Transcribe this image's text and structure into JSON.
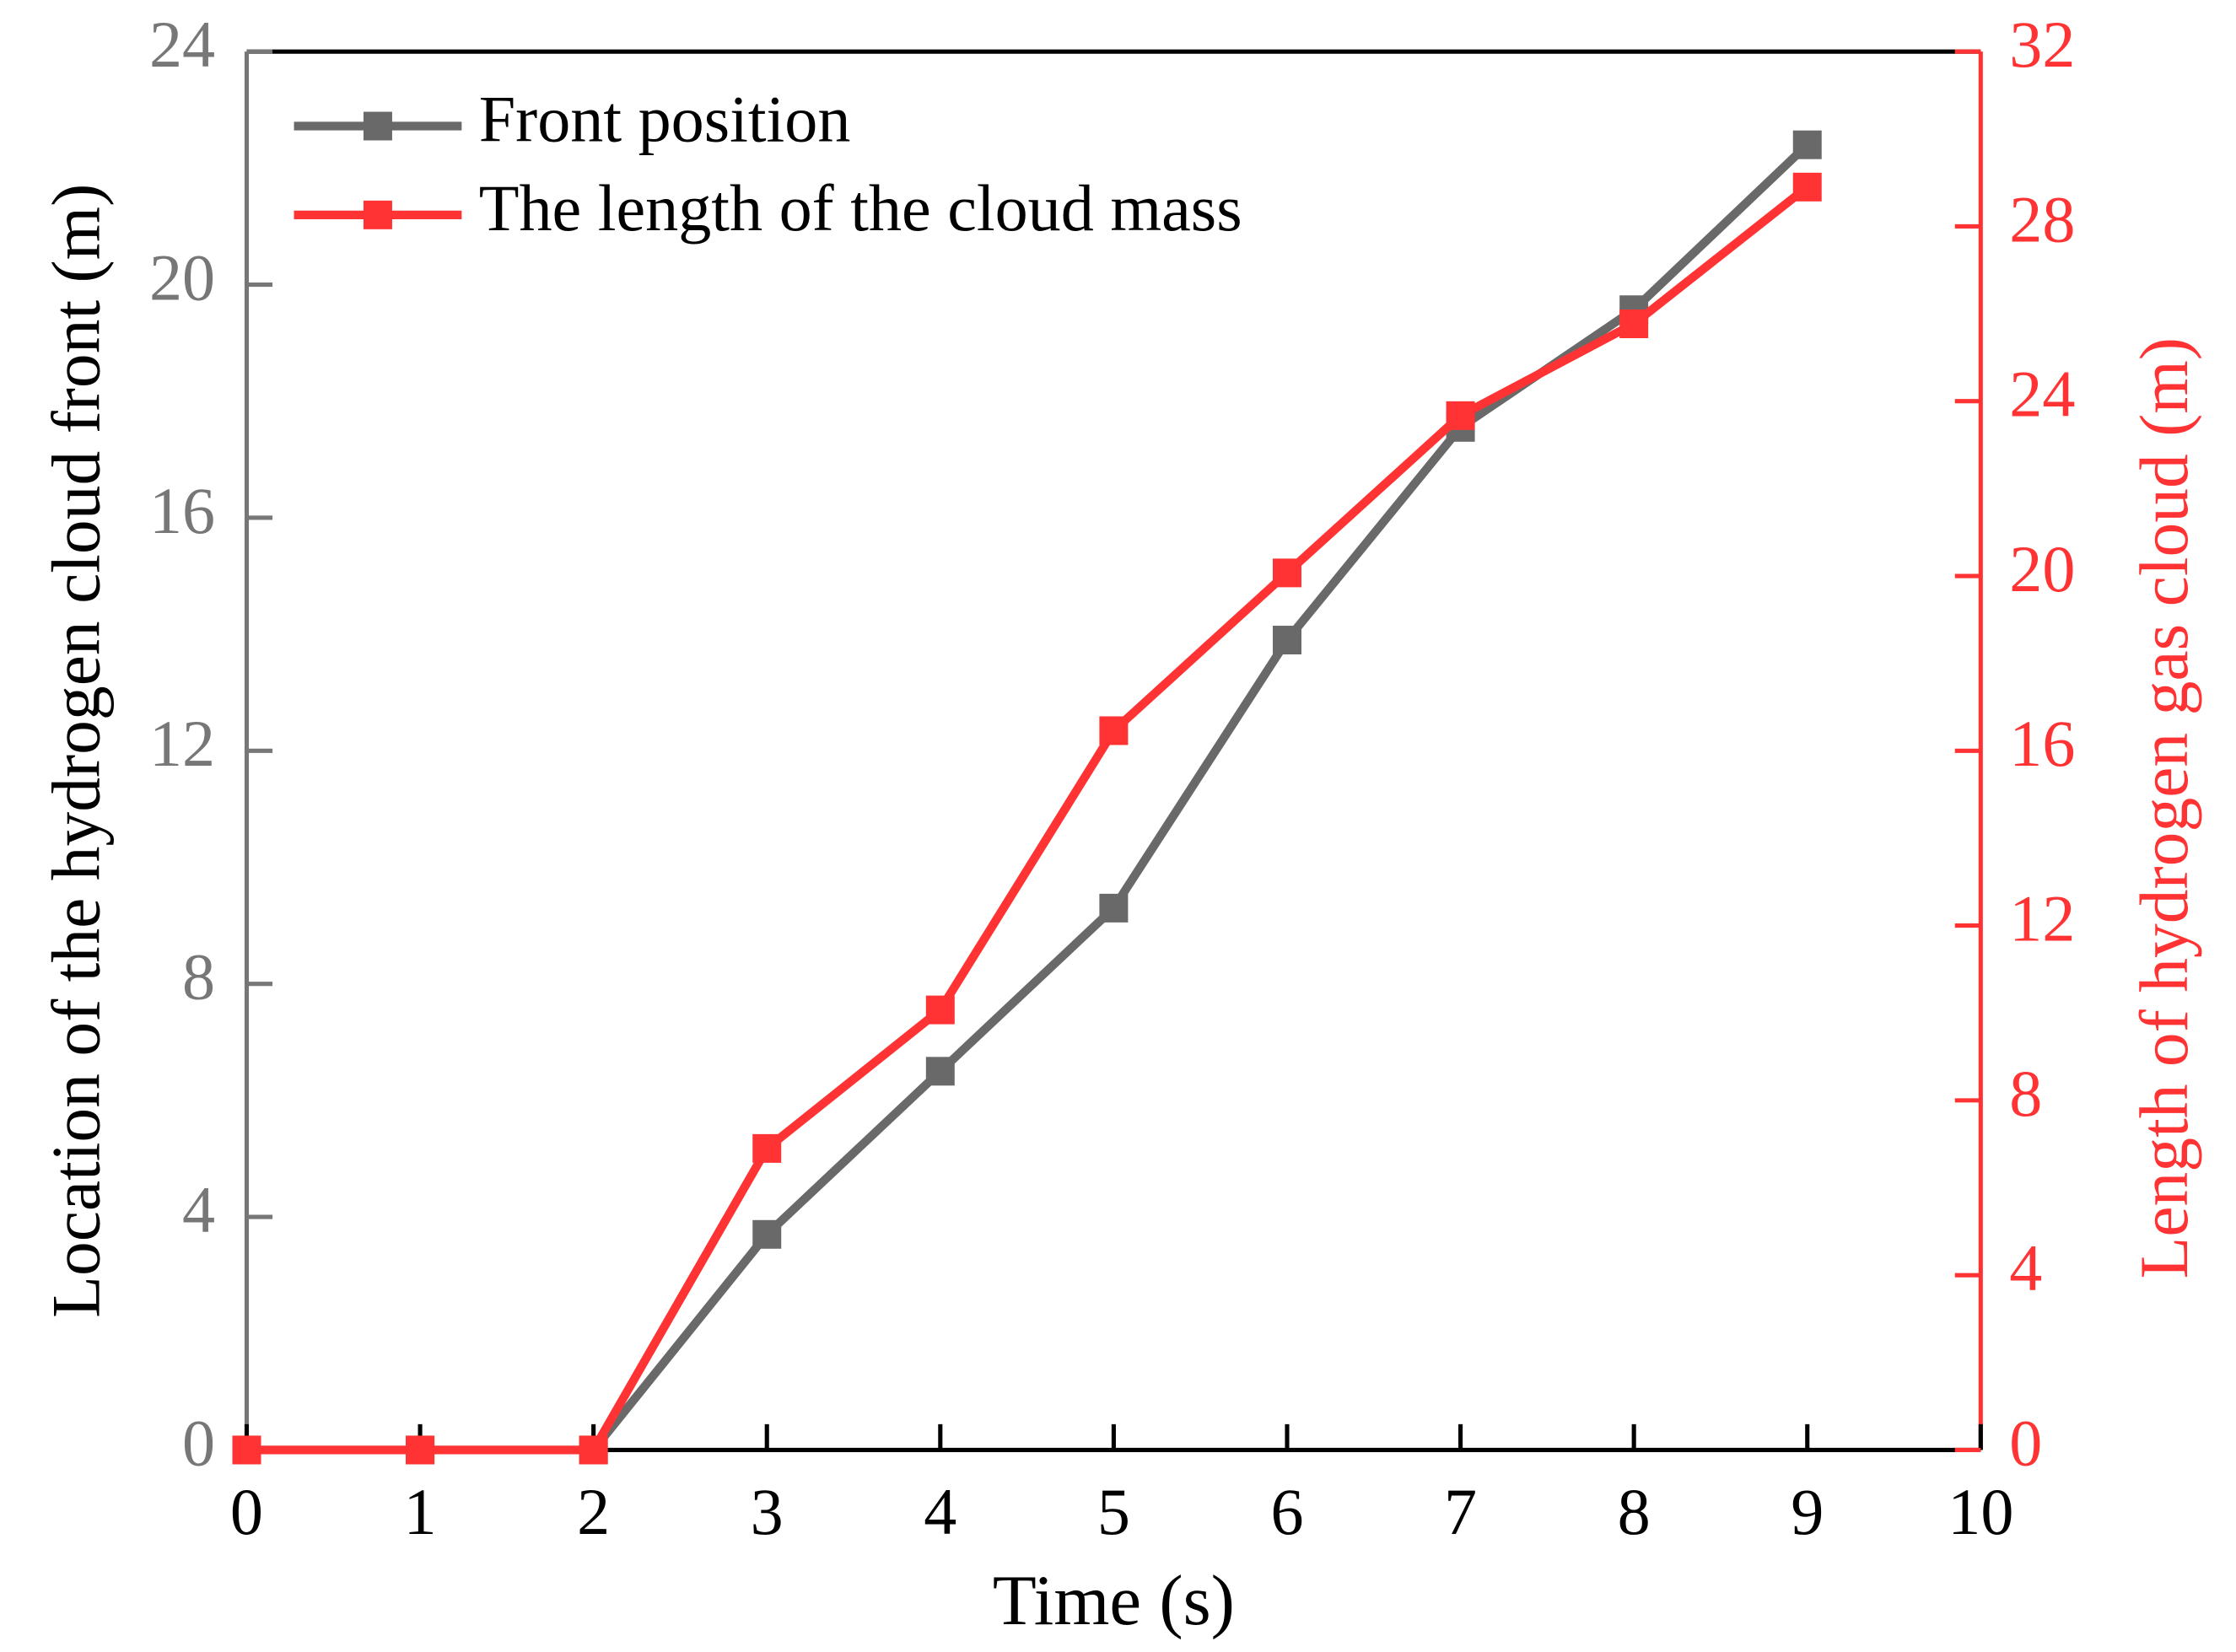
{
  "chart_data": {
    "type": "line",
    "x_label": "Time (s)",
    "y_label": "Location of the hydrogen cloud front (m)",
    "y2_label": "Length of hydrogen gas cloud (m)",
    "x": [
      0,
      1,
      2,
      3,
      4,
      5,
      6,
      7,
      8,
      9
    ],
    "series": [
      {
        "name": "Front position",
        "color": "#696969",
        "values": [
          0,
          0,
          0,
          3.7,
          6.5,
          9.3,
          13.9,
          17.55,
          19.57,
          22.4
        ]
      },
      {
        "name": "The length of the cloud mass",
        "color": "#ff3333",
        "axis": "y2",
        "values": [
          0,
          0,
          0,
          6.9,
          10.07,
          16.46,
          20.07,
          23.67,
          25.77,
          28.9
        ]
      }
    ],
    "xlim": [
      0,
      10
    ],
    "xticks": [
      0,
      1,
      2,
      3,
      4,
      5,
      6,
      7,
      8,
      9,
      10
    ],
    "ylim": [
      0,
      24
    ],
    "yticks": [
      0,
      4,
      8,
      12,
      16,
      20,
      24
    ],
    "y_color": "#777777",
    "y2lim": [
      0,
      32
    ],
    "y2ticks": [
      0,
      4,
      8,
      12,
      16,
      20,
      24,
      28,
      32
    ],
    "y2_color": "#ff3333",
    "legend": "upper left"
  }
}
